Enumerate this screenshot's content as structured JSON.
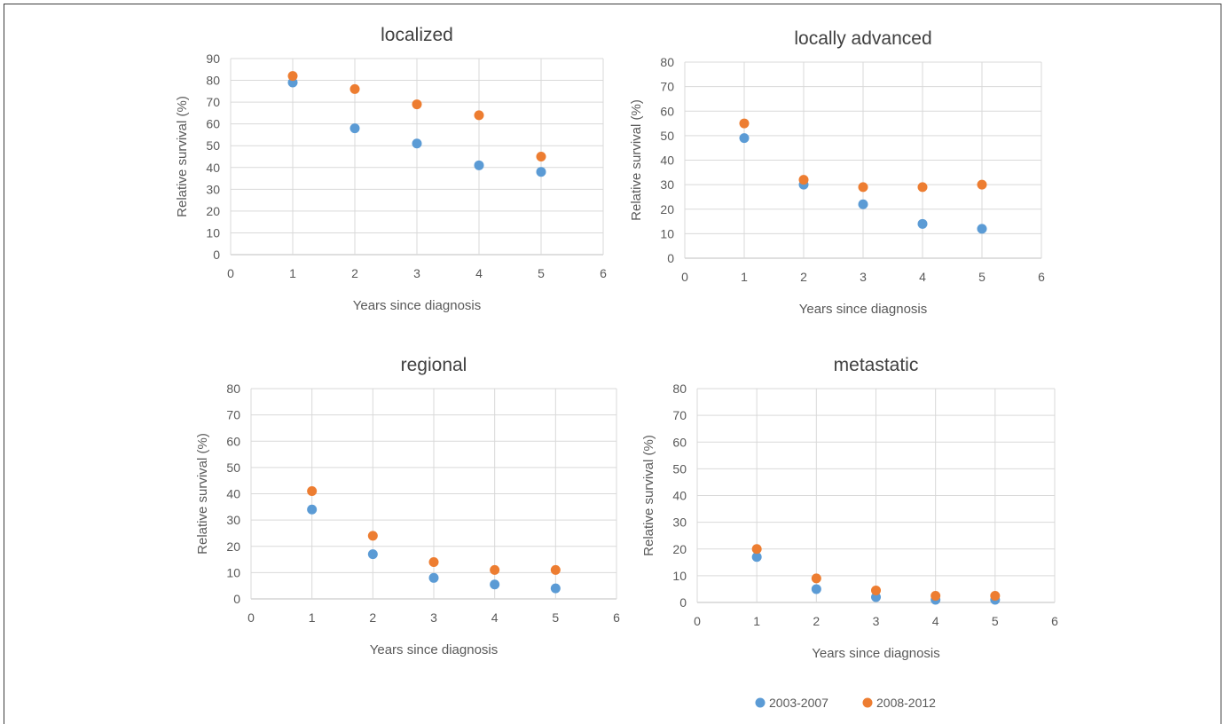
{
  "colors": {
    "series1": "#5b9bd5",
    "series2": "#ed7d31",
    "grid": "#d9d9d9",
    "axis": "#bfbfbf"
  },
  "legend": [
    {
      "name": "2003-2007",
      "color": "#5b9bd5"
    },
    {
      "name": "2008-2012",
      "color": "#ed7d31"
    }
  ],
  "chart_data": [
    {
      "type": "scatter",
      "title": "localized",
      "xlabel": "Years since diagnosis",
      "ylabel": "Relative survival (%)",
      "xlim": [
        0,
        6
      ],
      "ylim": [
        0,
        90
      ],
      "xstep": 1,
      "ystep": 10,
      "grid": true,
      "x": [
        1,
        2,
        3,
        4,
        5
      ],
      "series": [
        {
          "name": "2003-2007",
          "values": [
            79,
            58,
            51,
            41,
            38
          ]
        },
        {
          "name": "2008-2012",
          "values": [
            82,
            76,
            69,
            64,
            45
          ]
        }
      ]
    },
    {
      "type": "scatter",
      "title": "locally advanced",
      "xlabel": "Years since diagnosis",
      "ylabel": "Relative survival (%)",
      "xlim": [
        0,
        6
      ],
      "ylim": [
        0,
        80
      ],
      "xstep": 1,
      "ystep": 10,
      "grid": true,
      "x": [
        1,
        2,
        3,
        4,
        5
      ],
      "series": [
        {
          "name": "2003-2007",
          "values": [
            49,
            30,
            22,
            14,
            12
          ]
        },
        {
          "name": "2008-2012",
          "values": [
            55,
            32,
            29,
            29,
            30
          ]
        }
      ]
    },
    {
      "type": "scatter",
      "title": "regional",
      "xlabel": "Years since diagnosis",
      "ylabel": "Relative survival (%)",
      "xlim": [
        0,
        6
      ],
      "ylim": [
        0,
        80
      ],
      "xstep": 1,
      "ystep": 10,
      "grid": true,
      "x": [
        1,
        2,
        3,
        4,
        5
      ],
      "series": [
        {
          "name": "2003-2007",
          "values": [
            34,
            17,
            8,
            5.5,
            4
          ]
        },
        {
          "name": "2008-2012",
          "values": [
            41,
            24,
            14,
            11,
            11
          ]
        }
      ]
    },
    {
      "type": "scatter",
      "title": "metastatic",
      "xlabel": "Years since diagnosis",
      "ylabel": "Relative survival (%)",
      "xlim": [
        0,
        6
      ],
      "ylim": [
        0,
        80
      ],
      "xstep": 1,
      "ystep": 10,
      "grid": true,
      "x": [
        1,
        2,
        3,
        4,
        5
      ],
      "series": [
        {
          "name": "2003-2007",
          "values": [
            17,
            5,
            2,
            1,
            1
          ]
        },
        {
          "name": "2008-2012",
          "values": [
            20,
            9,
            4.5,
            2.5,
            2.5
          ]
        }
      ]
    }
  ]
}
